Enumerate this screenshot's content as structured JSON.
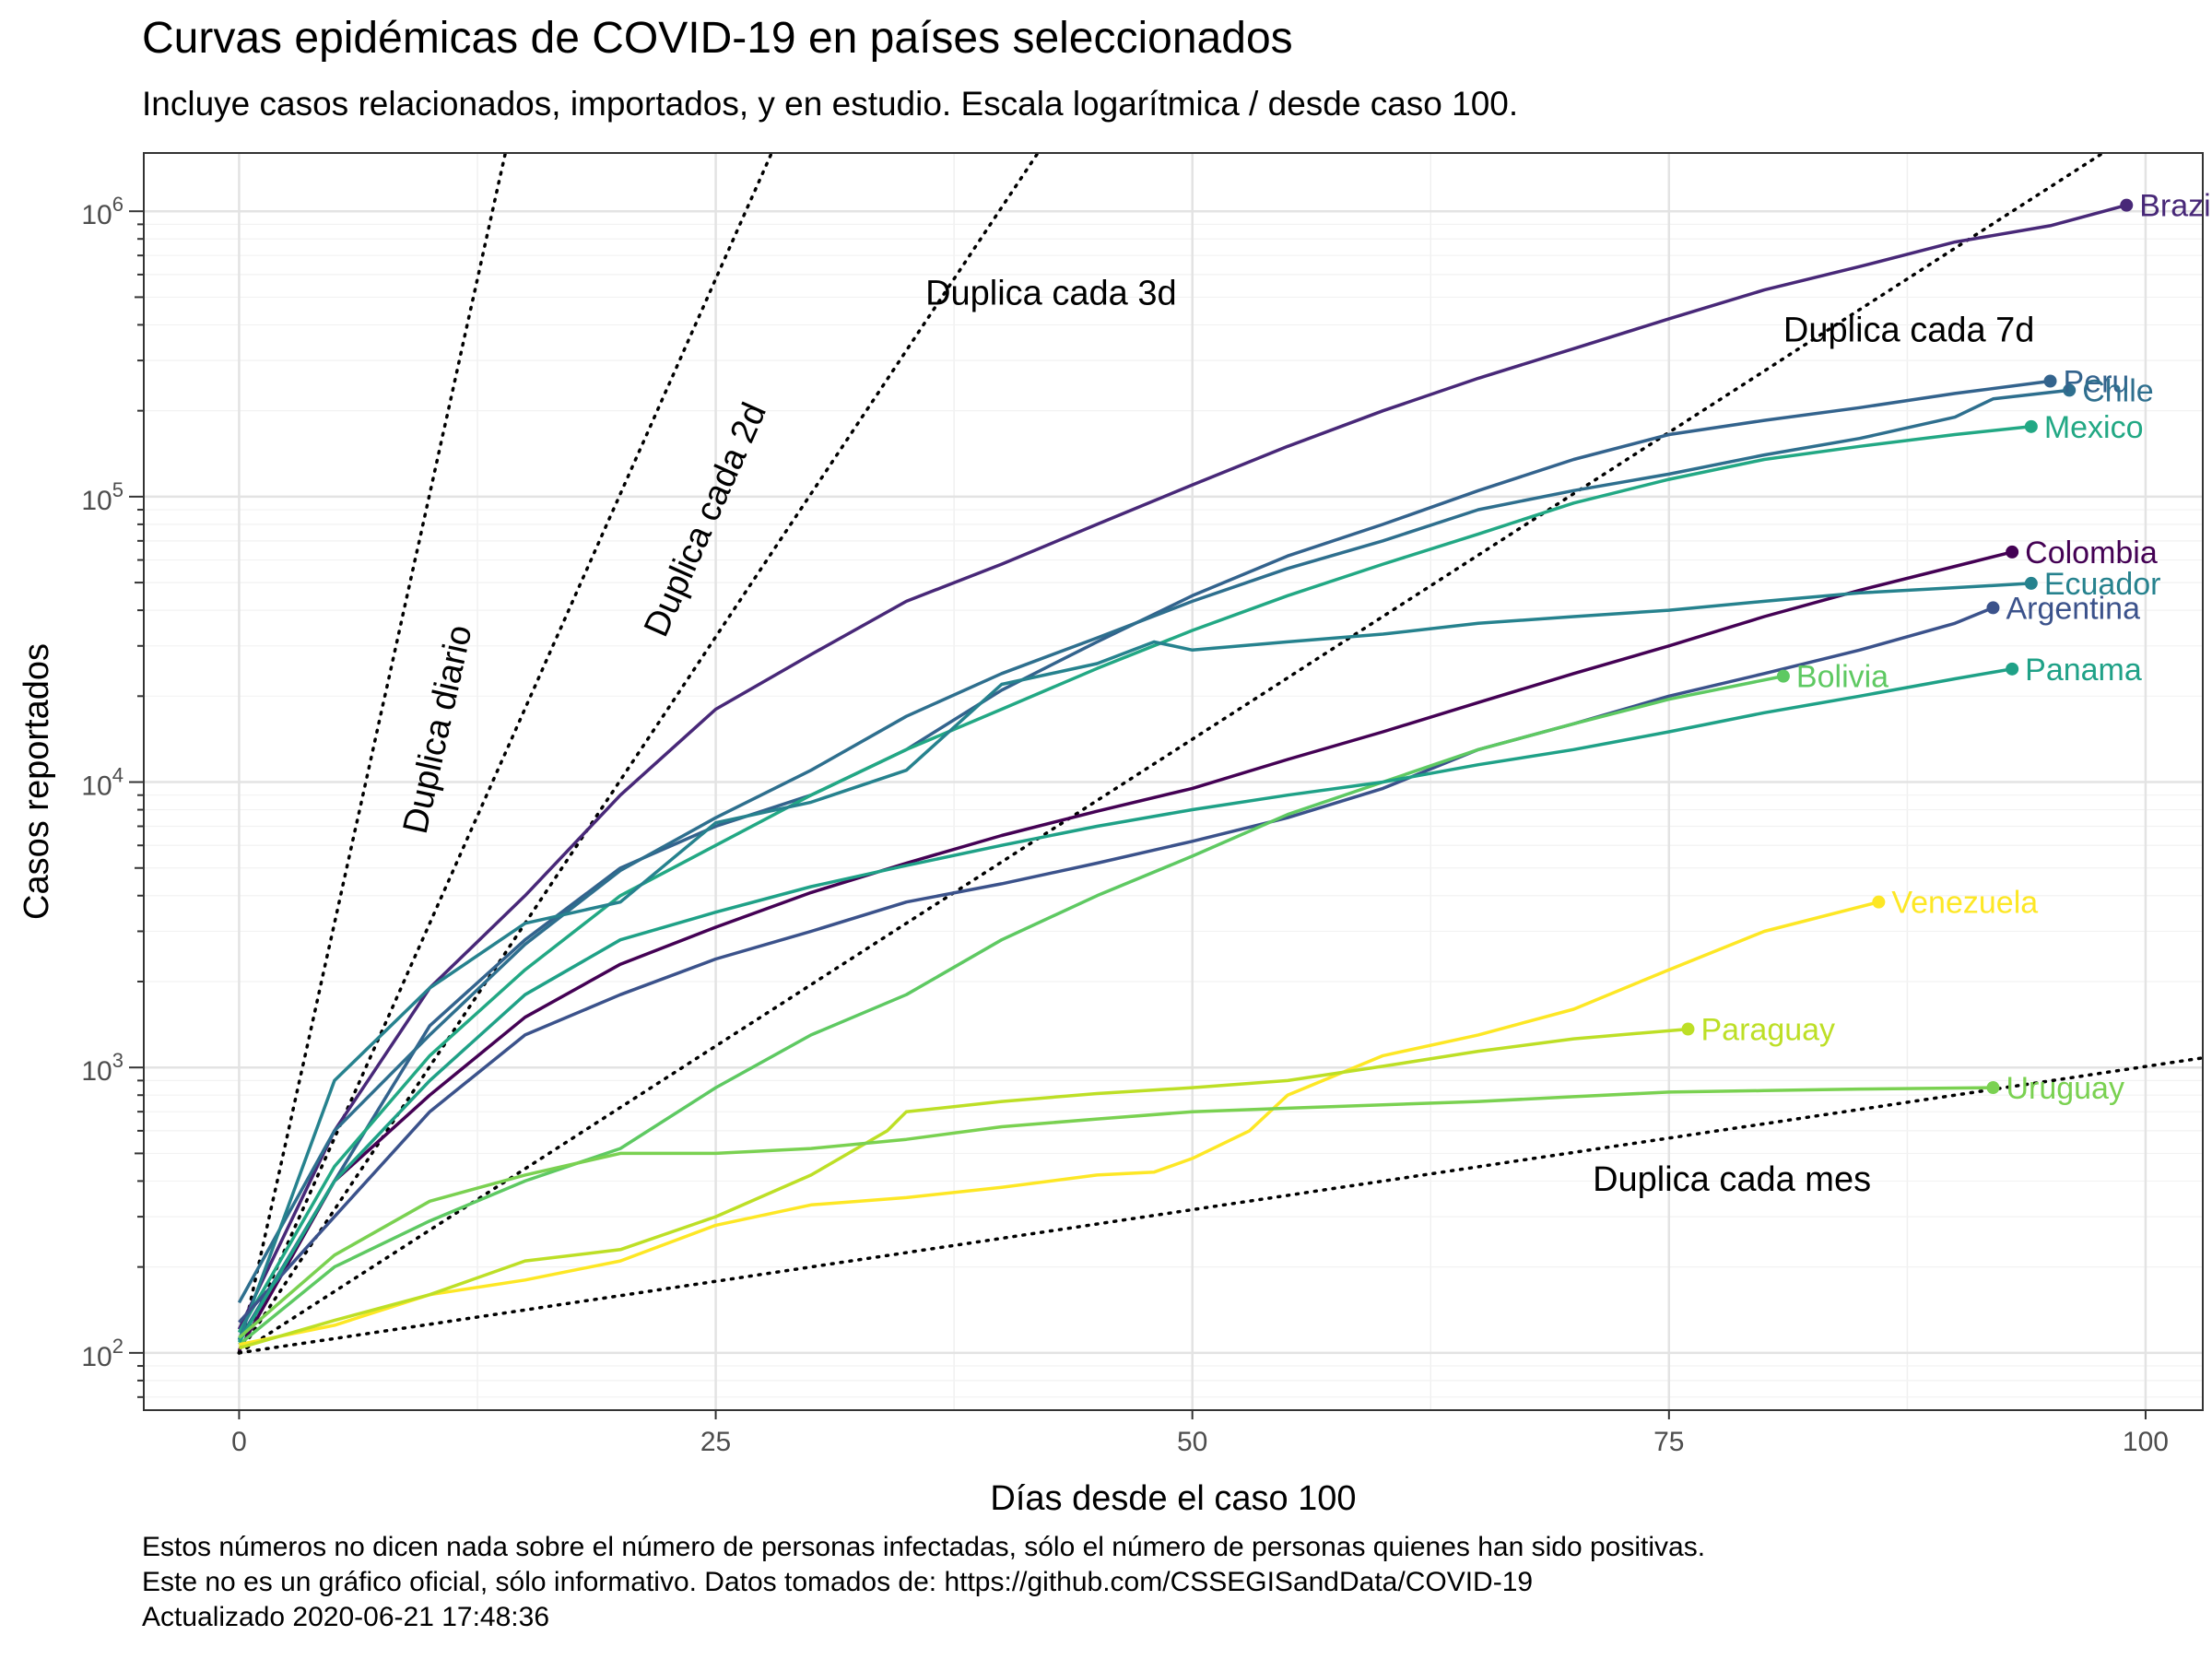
{
  "title": "Curvas epidémicas de COVID-19 en países seleccionados",
  "subtitle": "Incluye casos relacionados, importados, y en estudio. Escala logarítmica / desde caso 100.",
  "caption": [
    "Estos números no dicen nada sobre el número de personas infectadas, sólo el número de personas quienes han sido positivas.",
    "Este no es un gráfico oficial, sólo informativo. Datos tomados de: https://github.com/CSSEGISandData/COVID-19",
    "Actualizado 2020-06-21 17:48:36"
  ],
  "chart_data": {
    "type": "line",
    "title": "Curvas epidémicas de COVID-19 en países seleccionados",
    "subtitle": "Incluye casos relacionados, importados, y en estudio. Escala logarítmica / desde caso 100.",
    "xlabel": "Días desde el caso 100",
    "ylabel": "Casos reportados",
    "y_scale": "log10",
    "xlim": [
      -5,
      103
    ],
    "ylim": [
      63,
      1600000
    ],
    "x_ticks": [
      {
        "value": 0,
        "label": "0"
      },
      {
        "value": 25,
        "label": "25"
      },
      {
        "value": 50,
        "label": "50"
      },
      {
        "value": 75,
        "label": "75"
      },
      {
        "value": 100,
        "label": "100"
      }
    ],
    "y_ticks": [
      {
        "value": 100,
        "base": "10",
        "exp": "2"
      },
      {
        "value": 1000,
        "base": "10",
        "exp": "3"
      },
      {
        "value": 10000,
        "base": "10",
        "exp": "4"
      },
      {
        "value": 100000,
        "base": "10",
        "exp": "5"
      },
      {
        "value": 1000000,
        "base": "10",
        "exp": "6"
      }
    ],
    "grid": true,
    "legend": "none",
    "reference_lines": [
      {
        "label": "Duplica diario",
        "doubling_days": 1,
        "label_at": [
          11,
          15000
        ],
        "rotate": true
      },
      {
        "label": "Duplica cada 2d",
        "doubling_days": 2,
        "label_at": [
          25,
          80000
        ],
        "rotate": true
      },
      {
        "label": "Duplica cada 3d",
        "doubling_days": 3,
        "label_at": [
          36,
          470000
        ],
        "rotate": false
      },
      {
        "label": "Duplica cada 7d",
        "doubling_days": 7,
        "label_at": [
          81,
          350000
        ],
        "rotate": false
      },
      {
        "label": "Duplica cada mes",
        "doubling_days": 30,
        "label_at": [
          71,
          370
        ],
        "rotate": false
      }
    ],
    "series": [
      {
        "name": "Brazil",
        "color": "#482878",
        "x": [
          0,
          5,
          10,
          15,
          20,
          25,
          30,
          35,
          40,
          45,
          50,
          55,
          60,
          65,
          70,
          75,
          80,
          85,
          90,
          95,
          99
        ],
        "y": [
          121,
          600,
          1900,
          4000,
          9000,
          18000,
          28000,
          43000,
          58000,
          80000,
          110000,
          150000,
          200000,
          260000,
          330000,
          420000,
          530000,
          640000,
          780000,
          890000,
          1050000
        ]
      },
      {
        "name": "Peru",
        "color": "#33638d",
        "x": [
          0,
          5,
          10,
          15,
          20,
          25,
          30,
          35,
          40,
          45,
          50,
          55,
          60,
          65,
          70,
          75,
          80,
          85,
          90,
          95
        ],
        "y": [
          111,
          400,
          1400,
          2800,
          5000,
          7000,
          9000,
          13000,
          21000,
          31000,
          45000,
          62000,
          80000,
          105000,
          135000,
          165000,
          185000,
          205000,
          230000,
          254000
        ]
      },
      {
        "name": "Chile",
        "color": "#2e6f8e",
        "x": [
          0,
          5,
          10,
          15,
          20,
          25,
          30,
          35,
          40,
          45,
          50,
          55,
          60,
          65,
          70,
          75,
          80,
          85,
          90,
          92,
          96
        ],
        "y": [
          150,
          600,
          1300,
          2700,
          4900,
          7500,
          11000,
          17000,
          24000,
          32000,
          43000,
          56000,
          70000,
          90000,
          105000,
          120000,
          140000,
          160000,
          190000,
          220000,
          236000
        ]
      },
      {
        "name": "Mexico",
        "color": "#22a884",
        "x": [
          0,
          5,
          10,
          15,
          20,
          25,
          30,
          35,
          40,
          45,
          50,
          55,
          60,
          65,
          70,
          75,
          80,
          85,
          90,
          94
        ],
        "y": [
          118,
          450,
          1100,
          2200,
          4000,
          6000,
          9000,
          13000,
          18000,
          25000,
          34000,
          45000,
          58000,
          74000,
          95000,
          115000,
          135000,
          150000,
          165000,
          176000
        ]
      },
      {
        "name": "Colombia",
        "color": "#440154",
        "x": [
          0,
          5,
          10,
          15,
          20,
          25,
          30,
          35,
          40,
          45,
          50,
          55,
          60,
          65,
          70,
          75,
          80,
          85,
          90,
          93
        ],
        "y": [
          102,
          400,
          800,
          1500,
          2300,
          3100,
          4100,
          5200,
          6500,
          7900,
          9500,
          12000,
          15000,
          19000,
          24000,
          30000,
          38000,
          47000,
          57000,
          64000
        ]
      },
      {
        "name": "Ecuador",
        "color": "#26828e",
        "x": [
          0,
          5,
          10,
          15,
          20,
          25,
          30,
          35,
          40,
          45,
          48,
          50,
          55,
          60,
          65,
          70,
          75,
          80,
          85,
          90,
          94
        ],
        "y": [
          111,
          900,
          1900,
          3200,
          3800,
          7200,
          8500,
          11000,
          22000,
          26000,
          31000,
          29000,
          31000,
          33000,
          36000,
          38000,
          40000,
          43000,
          46000,
          48000,
          49700
        ]
      },
      {
        "name": "Argentina",
        "color": "#3b528b",
        "x": [
          0,
          5,
          10,
          15,
          20,
          25,
          30,
          35,
          40,
          45,
          50,
          55,
          60,
          65,
          70,
          75,
          80,
          85,
          90,
          92
        ],
        "y": [
          128,
          300,
          700,
          1300,
          1800,
          2400,
          3000,
          3800,
          4400,
          5200,
          6200,
          7500,
          9500,
          13000,
          16000,
          20000,
          24000,
          29000,
          36000,
          40800
        ]
      },
      {
        "name": "Bolivia",
        "color": "#5ec962",
        "x": [
          0,
          5,
          10,
          15,
          20,
          25,
          30,
          35,
          40,
          45,
          50,
          55,
          60,
          65,
          70,
          75,
          81
        ],
        "y": [
          107,
          200,
          290,
          400,
          520,
          850,
          1300,
          1800,
          2800,
          4000,
          5500,
          7700,
          10000,
          13000,
          16000,
          19500,
          23500
        ]
      },
      {
        "name": "Panama",
        "color": "#1fa187",
        "x": [
          0,
          5,
          10,
          15,
          20,
          25,
          30,
          35,
          40,
          45,
          50,
          55,
          60,
          65,
          70,
          75,
          80,
          85,
          90,
          93
        ],
        "y": [
          109,
          400,
          900,
          1800,
          2800,
          3500,
          4300,
          5100,
          6000,
          7000,
          8000,
          9000,
          10000,
          11500,
          13000,
          15000,
          17500,
          20000,
          23000,
          24900
        ]
      },
      {
        "name": "Venezuela",
        "color": "#fde725",
        "x": [
          0,
          5,
          10,
          15,
          20,
          25,
          30,
          35,
          40,
          45,
          48,
          50,
          53,
          55,
          60,
          65,
          70,
          75,
          80,
          86
        ],
        "y": [
          107,
          125,
          160,
          180,
          210,
          280,
          330,
          350,
          380,
          420,
          430,
          480,
          600,
          800,
          1100,
          1300,
          1600,
          2200,
          3000,
          3800
        ]
      },
      {
        "name": "Paraguay",
        "color": "#bddf26",
        "x": [
          0,
          5,
          10,
          15,
          20,
          25,
          30,
          34,
          35,
          40,
          45,
          50,
          55,
          60,
          65,
          70,
          76
        ],
        "y": [
          104,
          130,
          160,
          210,
          230,
          300,
          420,
          600,
          700,
          760,
          810,
          850,
          900,
          1010,
          1140,
          1260,
          1363
        ]
      },
      {
        "name": "Uruguay",
        "color": "#7ad151",
        "x": [
          0,
          5,
          10,
          15,
          20,
          25,
          30,
          35,
          40,
          45,
          50,
          55,
          60,
          65,
          70,
          75,
          80,
          85,
          92
        ],
        "y": [
          113,
          220,
          340,
          420,
          500,
          500,
          520,
          560,
          620,
          660,
          700,
          720,
          740,
          760,
          790,
          820,
          830,
          840,
          850
        ]
      }
    ]
  }
}
